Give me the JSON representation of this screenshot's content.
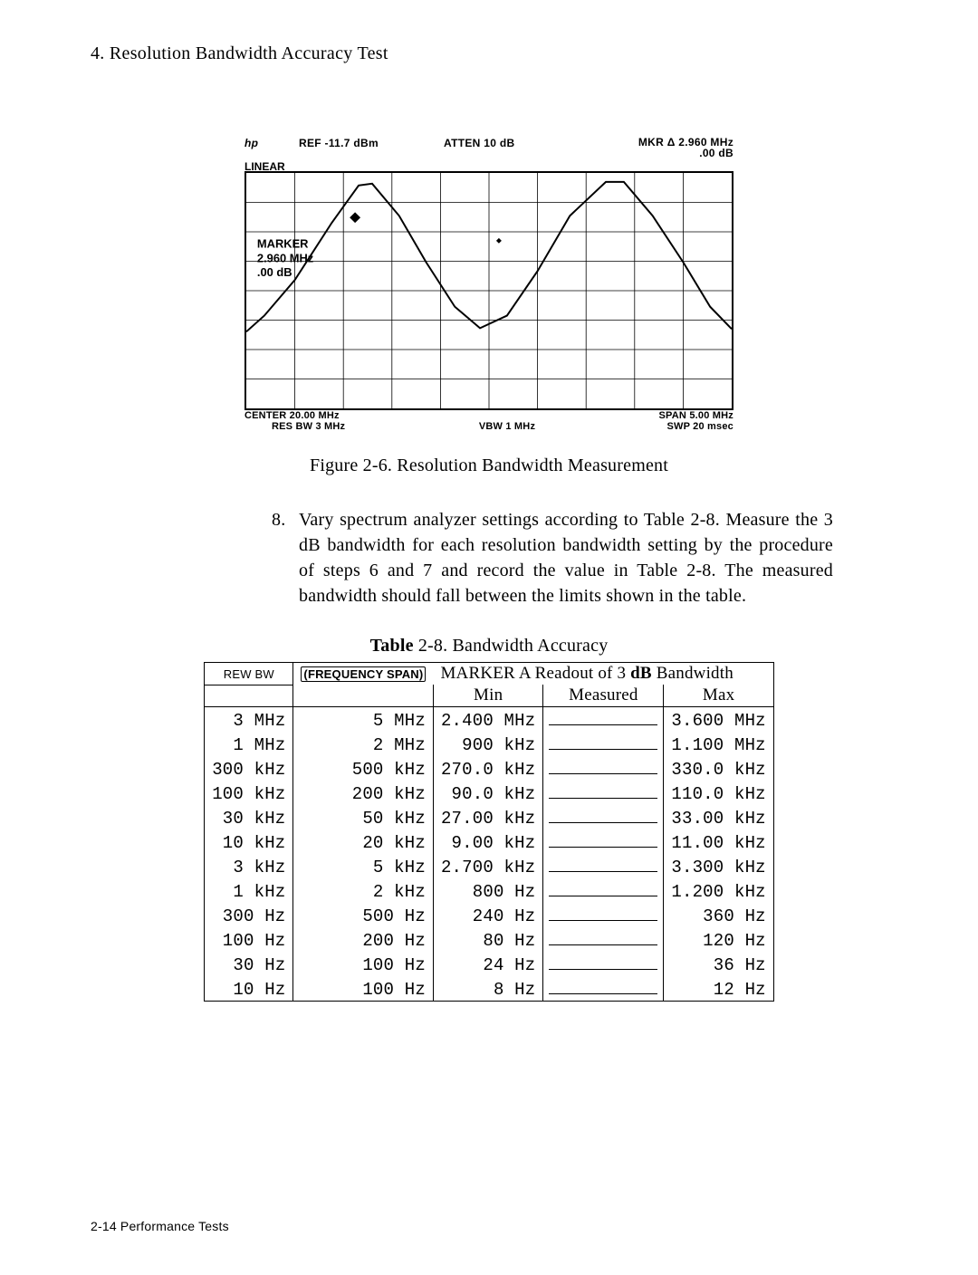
{
  "heading": "4. Resolution Bandwidth Accuracy Test",
  "analyzer": {
    "hp": "hp",
    "ref": "REF -11.7 dBm",
    "atten": "ATTEN 10 dB",
    "mkr1": "MKR Δ 2.960 MHz",
    "mkr2": ".00 dB",
    "linear": "LINEAR",
    "marker_label": "MARKER",
    "marker_val1": "2.960 MHz",
    "marker_val2": ".00 dB",
    "center": "CENTER 20.00 MHz",
    "resbw": "RES BW 3 MHz",
    "vbw": "VBW 1 MHz",
    "span": "SPAN 5.00 MHz",
    "swp": "SWP 20 msec",
    "grid_color": "#000000",
    "bg_color": "#ffffff"
  },
  "fig_caption": "Figure 2-6. Resolution Bandwidth Measurement",
  "step8": {
    "num": "8.",
    "text_html": "Vary spectrum analyzer settings according to Table 2-8. Measure the 3 dB bandwidth for each resolution bandwidth setting by the procedure of steps 6 and 7 and record the value in Table 2-8. The measured bandwidth should fall between the limits shown in the table."
  },
  "table": {
    "caption_html": "<span class=\"bill\">Table</span> 2-8. Bandwidth Accuracy",
    "hdr": {
      "rewbw": "REW BW",
      "freqspan_html": "<span class=\"fqspan-wrap\">(FREQUENCY SPAN)</span>",
      "marker_readout_html": "MARKER A  Readout of 3 <span class=\"bill\">dB</span> Bandwidth",
      "min": "Min",
      "measured": "Measured",
      "max": "Max"
    },
    "rows": [
      {
        "rb": "3 MHz",
        "fs": "5 MHz",
        "min": "2.400 MHz",
        "max": "3.600 MHz"
      },
      {
        "rb": "1 MHz",
        "fs": "2 MHz",
        "min": "900 kHz",
        "max": "1.100 MHz"
      },
      {
        "rb": "300 kHz",
        "fs": "500 kHz",
        "min": "270.0 kHz",
        "max": "330.0 kHz"
      },
      {
        "rb": "100 kHz",
        "fs": "200 kHz",
        "min": "90.0 kHz",
        "max": "110.0 kHz"
      },
      {
        "rb": "30 kHz",
        "fs": "50 kHz",
        "min": "27.00 kHz",
        "max": "33.00 kHz"
      },
      {
        "rb": "10 kHz",
        "fs": "20 kHz",
        "min": "9.00 kHz",
        "max": "11.00 kHz"
      },
      {
        "rb": "3 kHz",
        "fs": "5 kHz",
        "min": "2.700 kHz",
        "max": "3.300 kHz"
      },
      {
        "rb": "1 kHz",
        "fs": "2 kHz",
        "min": "800 Hz",
        "max": "1.200 kHz"
      },
      {
        "rb": "300 Hz",
        "fs": "500 Hz",
        "min": "240 Hz",
        "max": "360 Hz"
      },
      {
        "rb": "100 Hz",
        "fs": "200 Hz",
        "min": "80 Hz",
        "max": "120 Hz"
      },
      {
        "rb": "30 Hz",
        "fs": "100 Hz",
        "min": "24 Hz",
        "max": "36 Hz"
      },
      {
        "rb": "10 Hz",
        "fs": "100 Hz",
        "min": "8 Hz",
        "max": "12 Hz"
      }
    ]
  },
  "footer": "2-14 Performance Tests"
}
